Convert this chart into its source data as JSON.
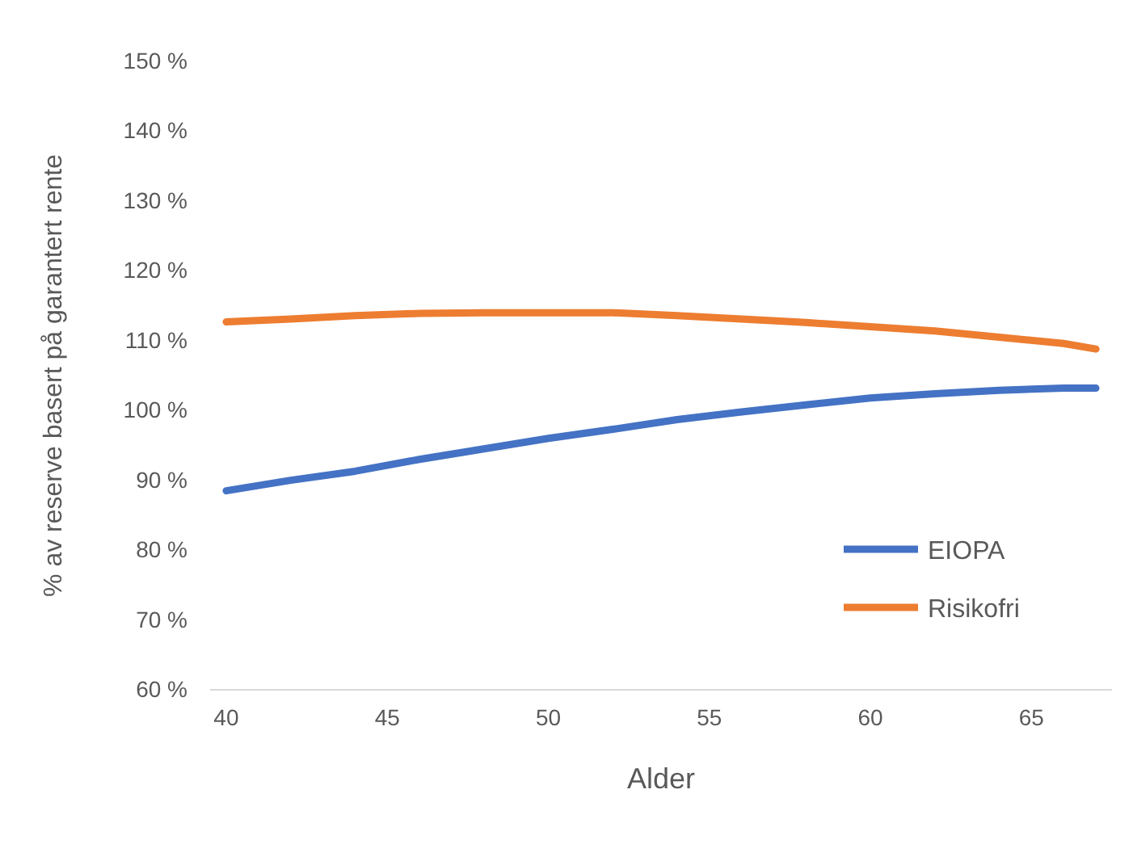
{
  "chart_data": {
    "type": "line",
    "xlabel": "Alder",
    "ylabel": "% av reserve basert på garantert rente",
    "x": [
      40,
      42,
      44,
      46,
      48,
      50,
      52,
      54,
      56,
      58,
      60,
      62,
      64,
      66,
      67
    ],
    "series": [
      {
        "name": "EIOPA",
        "color": "#4472c4",
        "values": [
          88.5,
          90,
          91.3,
          93,
          94.5,
          96,
          97.3,
          98.7,
          99.8,
          100.8,
          101.8,
          102.4,
          102.9,
          103.2,
          103.2
        ]
      },
      {
        "name": "Risikofri",
        "color": "#ed7d31",
        "values": [
          112.7,
          113.1,
          113.6,
          113.9,
          114,
          114,
          114,
          113.6,
          113.1,
          112.6,
          112,
          111.4,
          110.5,
          109.6,
          108.8
        ]
      }
    ],
    "xlim": [
      39.5,
      67.5
    ],
    "xticks": [
      40,
      45,
      50,
      55,
      60,
      65
    ],
    "ylim": [
      60,
      150
    ],
    "yticks": [
      {
        "value": 60,
        "label": "60 %"
      },
      {
        "value": 70,
        "label": "70 %"
      },
      {
        "value": 80,
        "label": "80 %"
      },
      {
        "value": 90,
        "label": "90 %"
      },
      {
        "value": 100,
        "label": "100 %"
      },
      {
        "value": 110,
        "label": "110 %"
      },
      {
        "value": 120,
        "label": "120 %"
      },
      {
        "value": 130,
        "label": "130 %"
      },
      {
        "value": 140,
        "label": "140 %"
      },
      {
        "value": 150,
        "label": "150 %"
      }
    ],
    "grid": false,
    "legend": "bottom right",
    "marker": "none",
    "line_style": "solid"
  }
}
